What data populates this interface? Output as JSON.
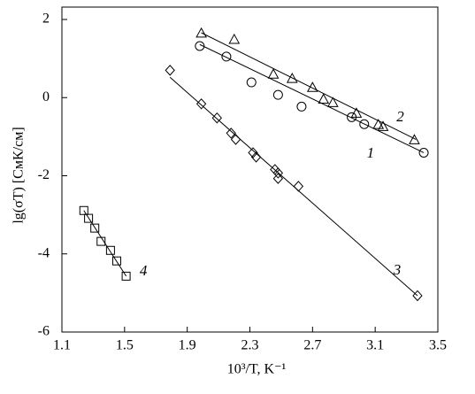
{
  "chart_data": {
    "type": "scatter",
    "xlabel": "10³/T, K⁻¹",
    "ylabel": "lg(σT) [СмК/см]",
    "xlim": [
      1.1,
      3.5
    ],
    "ylim": [
      -6,
      2
    ],
    "xticks": [
      1.1,
      1.5,
      1.9,
      2.3,
      2.7,
      3.1,
      3.5
    ],
    "yticks": [
      -6,
      -4,
      -2,
      0,
      2
    ],
    "color": "#000000",
    "series": [
      {
        "name": "1",
        "marker": "circle",
        "x": [
          1.98,
          2.15,
          2.31,
          2.48,
          2.63,
          2.95,
          3.03,
          3.41
        ],
        "values": [
          1.32,
          1.05,
          0.39,
          0.07,
          -0.23,
          -0.5,
          -0.68,
          -1.41
        ],
        "fit_x": [
          1.98,
          3.41
        ],
        "fit_y": [
          1.36,
          -1.41
        ]
      },
      {
        "name": "2",
        "marker": "triangle",
        "x": [
          1.99,
          2.2,
          2.45,
          2.57,
          2.7,
          2.77,
          2.83,
          2.98,
          3.12,
          3.15,
          3.35
        ],
        "values": [
          1.64,
          1.48,
          0.59,
          0.48,
          0.25,
          -0.05,
          -0.14,
          -0.41,
          -0.7,
          -0.75,
          -1.09
        ],
        "fit_x": [
          1.99,
          3.36
        ],
        "fit_y": [
          1.66,
          -1.07
        ]
      },
      {
        "name": "3",
        "marker": "diamond",
        "x": [
          1.79,
          1.99,
          2.09,
          2.18,
          2.21,
          2.32,
          2.34,
          2.46,
          2.48,
          2.48,
          2.61,
          3.37
        ],
        "values": [
          0.7,
          -0.16,
          -0.52,
          -0.91,
          -1.07,
          -1.41,
          -1.52,
          -1.84,
          -1.93,
          -2.07,
          -2.27,
          -5.07
        ],
        "fit_x": [
          1.79,
          3.37
        ],
        "fit_y": [
          0.52,
          -5.07
        ]
      },
      {
        "name": "4",
        "marker": "square",
        "x": [
          1.24,
          1.27,
          1.31,
          1.35,
          1.41,
          1.45,
          1.51
        ],
        "values": [
          -2.89,
          -3.09,
          -3.34,
          -3.68,
          -3.91,
          -4.18,
          -4.57
        ],
        "fit_x": [
          1.24,
          1.51
        ],
        "fit_y": [
          -2.89,
          -4.57
        ]
      }
    ],
    "series_label_at": [
      [
        3.07,
        -1.45
      ],
      [
        3.26,
        -0.52
      ],
      [
        3.24,
        -4.44
      ],
      [
        1.62,
        -4.46
      ]
    ]
  }
}
